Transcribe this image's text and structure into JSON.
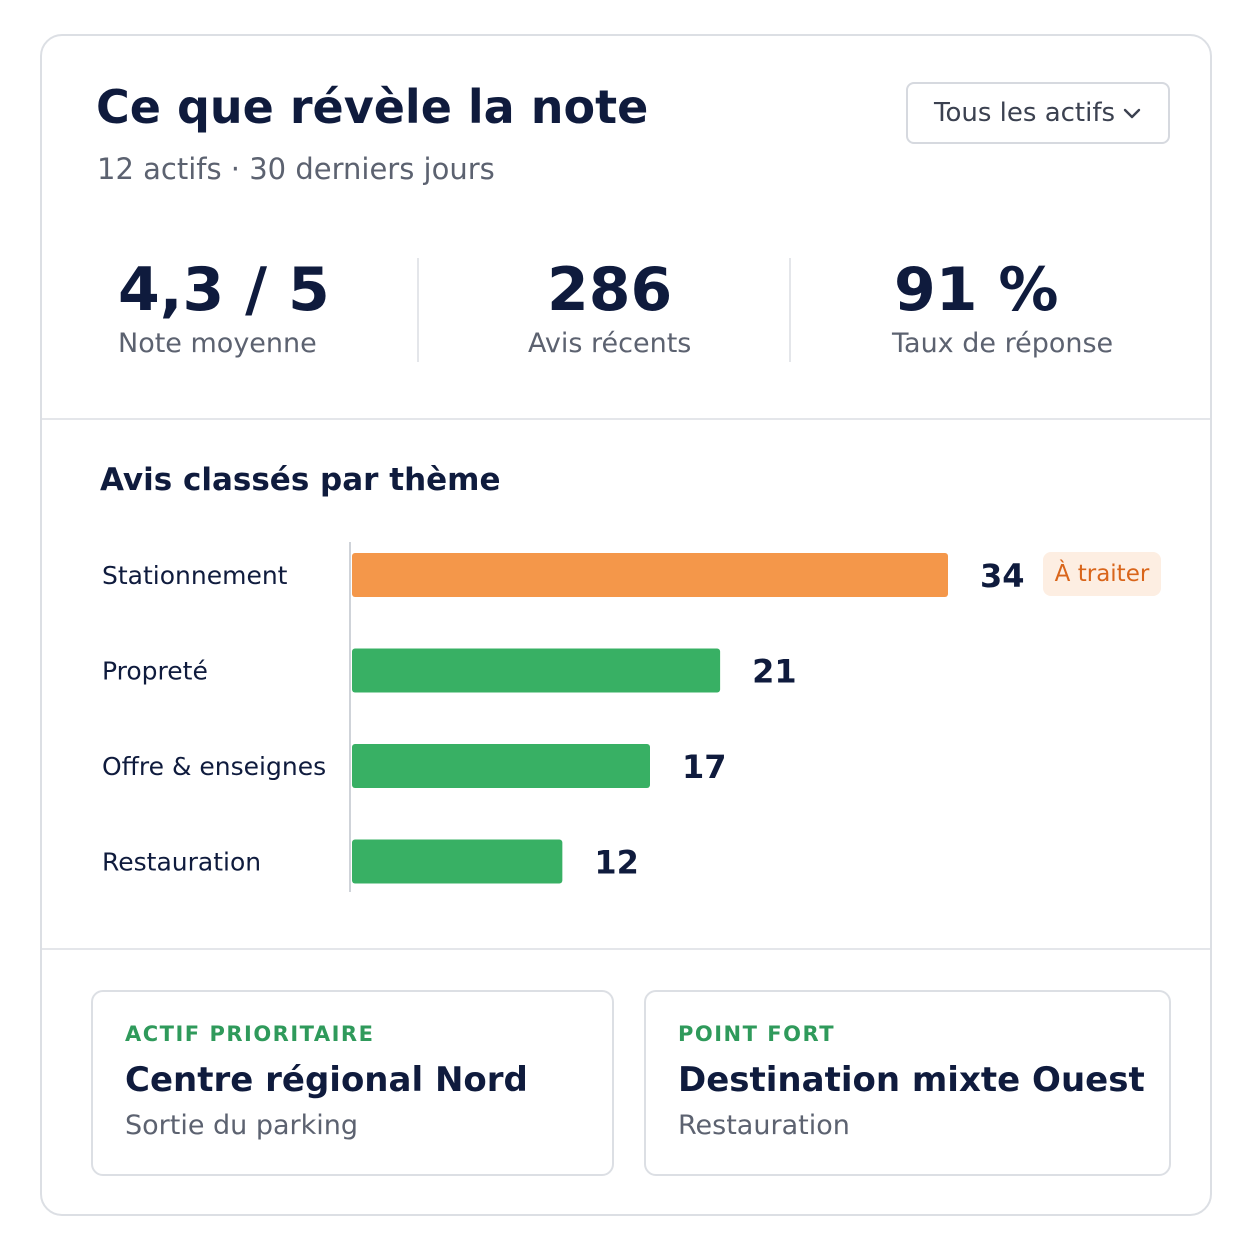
{
  "header": {
    "title": "Ce que révèle la note",
    "subtitle": "12 actifs · 30 derniers jours",
    "filter": {
      "selected": "Tous les actifs",
      "icon": "chevron-down-icon"
    }
  },
  "kpis": [
    {
      "value": "4,3 / 5",
      "label": "Note moyenne"
    },
    {
      "value": "286",
      "label": "Avis récents"
    },
    {
      "value": "91 %",
      "label": "Taux de réponse"
    }
  ],
  "themes": {
    "title": "Avis classés par thème",
    "badge": "À traiter"
  },
  "chart_data": {
    "type": "bar",
    "orientation": "horizontal",
    "categories": [
      "Stationnement",
      "Propreté",
      "Offre & enseignes",
      "Restauration"
    ],
    "values": [
      34,
      21,
      17,
      12
    ],
    "colors": [
      "#f4974a",
      "#38b064",
      "#38b064",
      "#38b064"
    ],
    "xlim": [
      0,
      34
    ],
    "grid": false,
    "legend": "none"
  },
  "highlights": [
    {
      "kicker": "ACTIF PRIORITAIRE",
      "name": "Centre régional Nord",
      "detail": "Sortie du parking"
    },
    {
      "kicker": "POINT FORT",
      "name": "Destination mixte Ouest",
      "detail": "Restauration"
    }
  ],
  "colors": {
    "ink": "#0f1b3d",
    "muted": "#5c6270",
    "border": "#dcdfe4",
    "warning_bar": "#f4974a",
    "positive_bar": "#38b064",
    "badge_bg": "#fdeee2",
    "badge_text": "#d9651a",
    "kicker": "#2f9a5b"
  }
}
